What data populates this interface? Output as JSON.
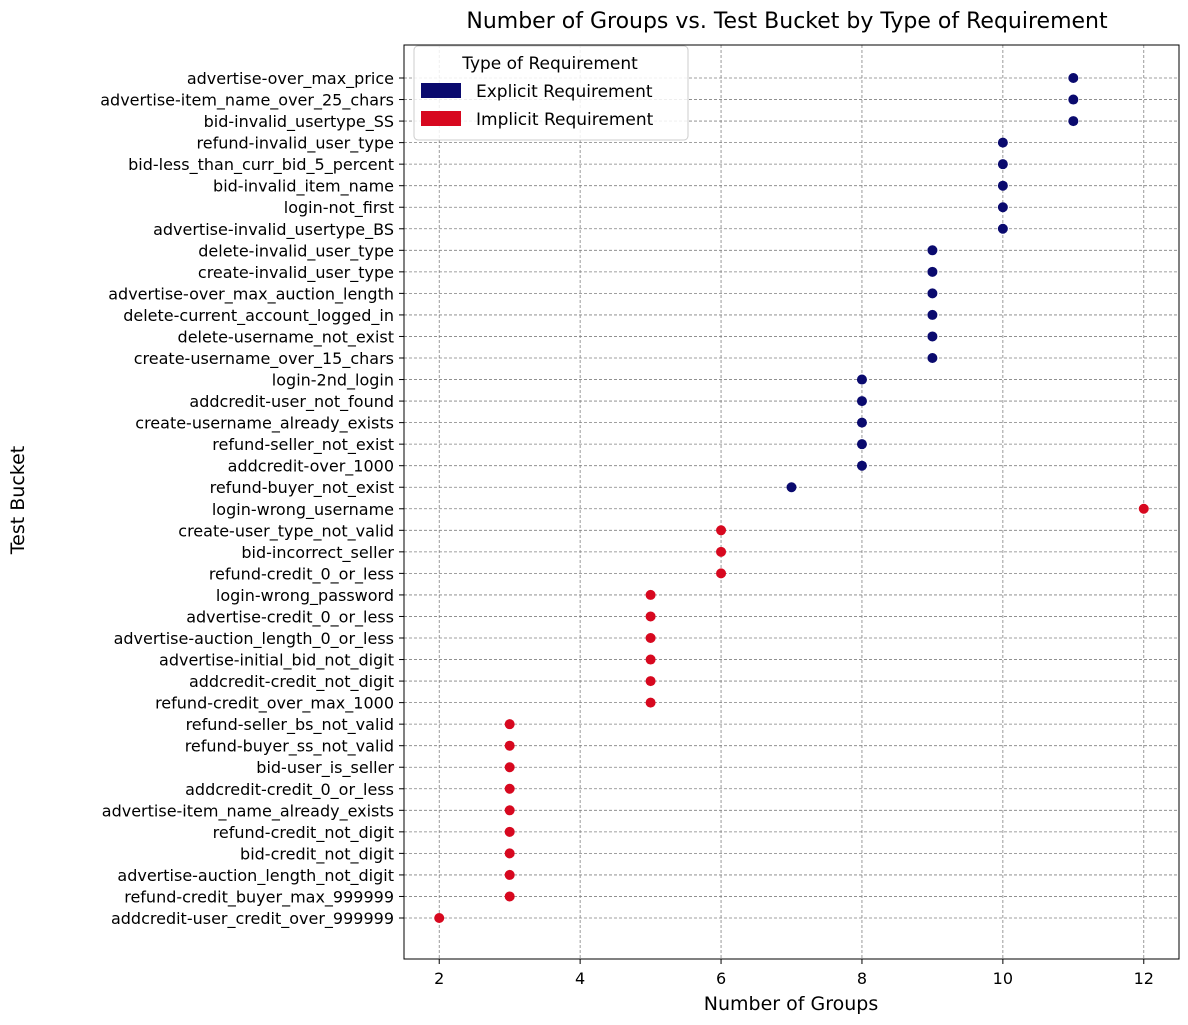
{
  "chart_data": {
    "type": "scatter",
    "title": "Number of Groups vs. Test Bucket by Type of Requirement",
    "xlabel": "Number of Groups",
    "ylabel": "Test Bucket",
    "xlim": [
      1.5,
      12.5
    ],
    "xticks": [
      2,
      4,
      6,
      8,
      10,
      12
    ],
    "grid": true,
    "legend_title": "Type of Requirement",
    "legend_position": "top-left",
    "categories": [
      "advertise-over_max_price",
      "advertise-item_name_over_25_chars",
      "bid-invalid_usertype_SS",
      "refund-invalid_user_type",
      "bid-less_than_curr_bid_5_percent",
      "bid-invalid_item_name",
      "login-not_first",
      "advertise-invalid_usertype_BS",
      "delete-invalid_user_type",
      "create-invalid_user_type",
      "advertise-over_max_auction_length",
      "delete-current_account_logged_in",
      "delete-username_not_exist",
      "create-username_over_15_chars",
      "login-2nd_login",
      "addcredit-user_not_found",
      "create-username_already_exists",
      "refund-seller_not_exist",
      "addcredit-over_1000",
      "refund-buyer_not_exist",
      "login-wrong_username",
      "create-user_type_not_valid",
      "bid-incorrect_seller",
      "refund-credit_0_or_less",
      "login-wrong_password",
      "advertise-credit_0_or_less",
      "advertise-auction_length_0_or_less",
      "advertise-initial_bid_not_digit",
      "addcredit-credit_not_digit",
      "refund-credit_over_max_1000",
      "refund-seller_bs_not_valid",
      "refund-buyer_ss_not_valid",
      "bid-user_is_seller",
      "addcredit-credit_0_or_less",
      "advertise-item_name_already_exists",
      "refund-credit_not_digit",
      "bid-credit_not_digit",
      "advertise-auction_length_not_digit",
      "refund-credit_buyer_max_999999",
      "addcredit-user_credit_over_999999"
    ],
    "series": [
      {
        "name": "Explicit Requirement",
        "color": "#0a0a6e",
        "points": [
          {
            "y": "advertise-over_max_price",
            "x": 11
          },
          {
            "y": "advertise-item_name_over_25_chars",
            "x": 11
          },
          {
            "y": "bid-invalid_usertype_SS",
            "x": 11
          },
          {
            "y": "refund-invalid_user_type",
            "x": 10
          },
          {
            "y": "bid-less_than_curr_bid_5_percent",
            "x": 10
          },
          {
            "y": "bid-invalid_item_name",
            "x": 10
          },
          {
            "y": "login-not_first",
            "x": 10
          },
          {
            "y": "advertise-invalid_usertype_BS",
            "x": 10
          },
          {
            "y": "delete-invalid_user_type",
            "x": 9
          },
          {
            "y": "create-invalid_user_type",
            "x": 9
          },
          {
            "y": "advertise-over_max_auction_length",
            "x": 9
          },
          {
            "y": "delete-current_account_logged_in",
            "x": 9
          },
          {
            "y": "delete-username_not_exist",
            "x": 9
          },
          {
            "y": "create-username_over_15_chars",
            "x": 9
          },
          {
            "y": "login-2nd_login",
            "x": 8
          },
          {
            "y": "addcredit-user_not_found",
            "x": 8
          },
          {
            "y": "create-username_already_exists",
            "x": 8
          },
          {
            "y": "refund-seller_not_exist",
            "x": 8
          },
          {
            "y": "addcredit-over_1000",
            "x": 8
          },
          {
            "y": "refund-buyer_not_exist",
            "x": 7
          }
        ]
      },
      {
        "name": "Implicit Requirement",
        "color": "#d7081f",
        "points": [
          {
            "y": "login-wrong_username",
            "x": 12
          },
          {
            "y": "create-user_type_not_valid",
            "x": 6
          },
          {
            "y": "bid-incorrect_seller",
            "x": 6
          },
          {
            "y": "refund-credit_0_or_less",
            "x": 6
          },
          {
            "y": "login-wrong_password",
            "x": 5
          },
          {
            "y": "advertise-credit_0_or_less",
            "x": 5
          },
          {
            "y": "advertise-auction_length_0_or_less",
            "x": 5
          },
          {
            "y": "advertise-initial_bid_not_digit",
            "x": 5
          },
          {
            "y": "addcredit-credit_not_digit",
            "x": 5
          },
          {
            "y": "refund-credit_over_max_1000",
            "x": 5
          },
          {
            "y": "refund-seller_bs_not_valid",
            "x": 3
          },
          {
            "y": "refund-buyer_ss_not_valid",
            "x": 3
          },
          {
            "y": "bid-user_is_seller",
            "x": 3
          },
          {
            "y": "addcredit-credit_0_or_less",
            "x": 3
          },
          {
            "y": "advertise-item_name_already_exists",
            "x": 3
          },
          {
            "y": "refund-credit_not_digit",
            "x": 3
          },
          {
            "y": "bid-credit_not_digit",
            "x": 3
          },
          {
            "y": "advertise-auction_length_not_digit",
            "x": 3
          },
          {
            "y": "refund-credit_buyer_max_999999",
            "x": 3
          },
          {
            "y": "addcredit-user_credit_over_999999",
            "x": 2
          }
        ]
      }
    ]
  }
}
